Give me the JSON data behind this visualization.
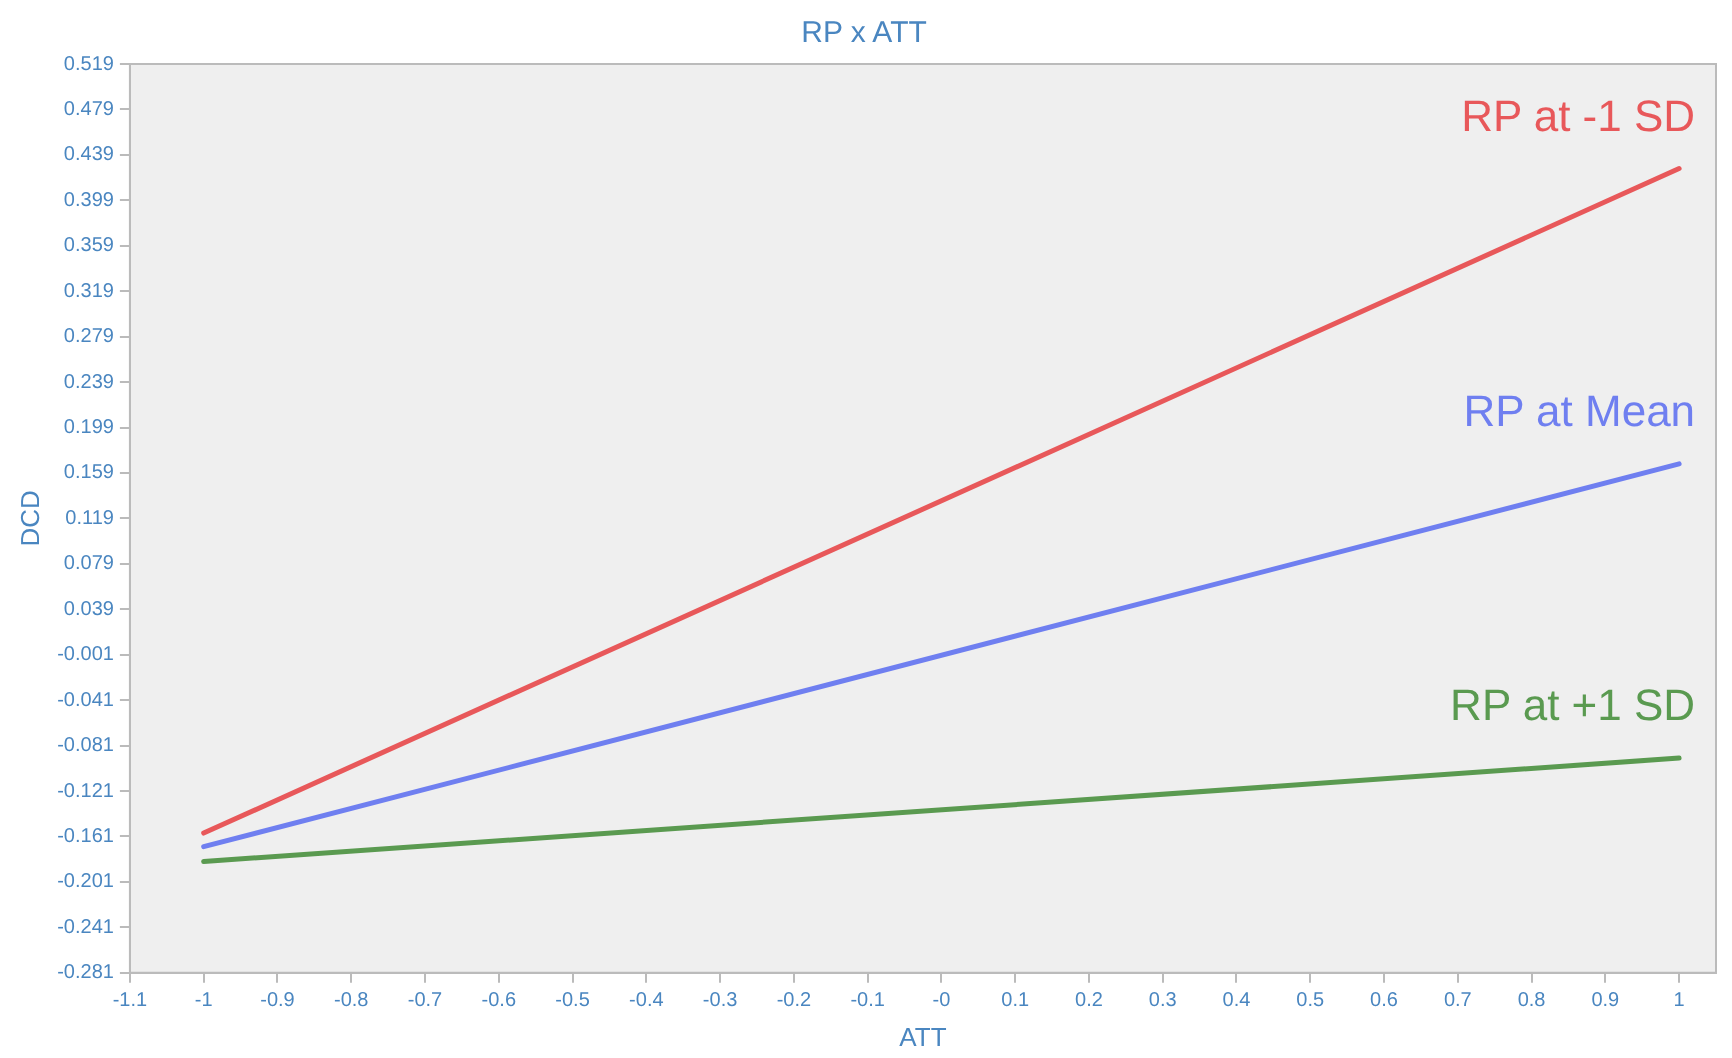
{
  "chart_data": {
    "type": "line",
    "title": "RP x ATT",
    "xlabel": "ATT",
    "ylabel": "DCD",
    "x": [
      -1,
      1
    ],
    "series": [
      {
        "name": "RP at -1 SD",
        "color": "#e8585a",
        "values": [
          -0.158,
          0.427
        ]
      },
      {
        "name": "RP at Mean",
        "color": "#6f7ff0",
        "values": [
          -0.17,
          0.167
        ]
      },
      {
        "name": "RP at +1 SD",
        "color": "#5a9a50",
        "values": [
          -0.183,
          -0.092
        ]
      }
    ],
    "xlim": [
      -1.1,
      1.05
    ],
    "xticks": [
      -1.1,
      -1,
      -0.9,
      -0.8,
      -0.7,
      -0.6,
      -0.5,
      -0.4,
      -0.3,
      -0.2,
      -0.1,
      {
        "value": 0,
        "label": "-0"
      },
      0.1,
      0.2,
      0.3,
      0.4,
      0.5,
      0.6,
      0.7,
      0.8,
      0.9,
      1
    ],
    "ylim": [
      -0.281,
      0.519
    ],
    "yticks": [
      -0.281,
      -0.241,
      -0.201,
      -0.161,
      -0.121,
      -0.081,
      -0.041,
      -0.001,
      0.039,
      0.079,
      0.119,
      0.159,
      0.199,
      0.239,
      0.279,
      0.319,
      0.359,
      0.399,
      0.439,
      0.479,
      0.519
    ],
    "grid": false,
    "legend": false,
    "marker": "none",
    "line_style": "solid"
  }
}
